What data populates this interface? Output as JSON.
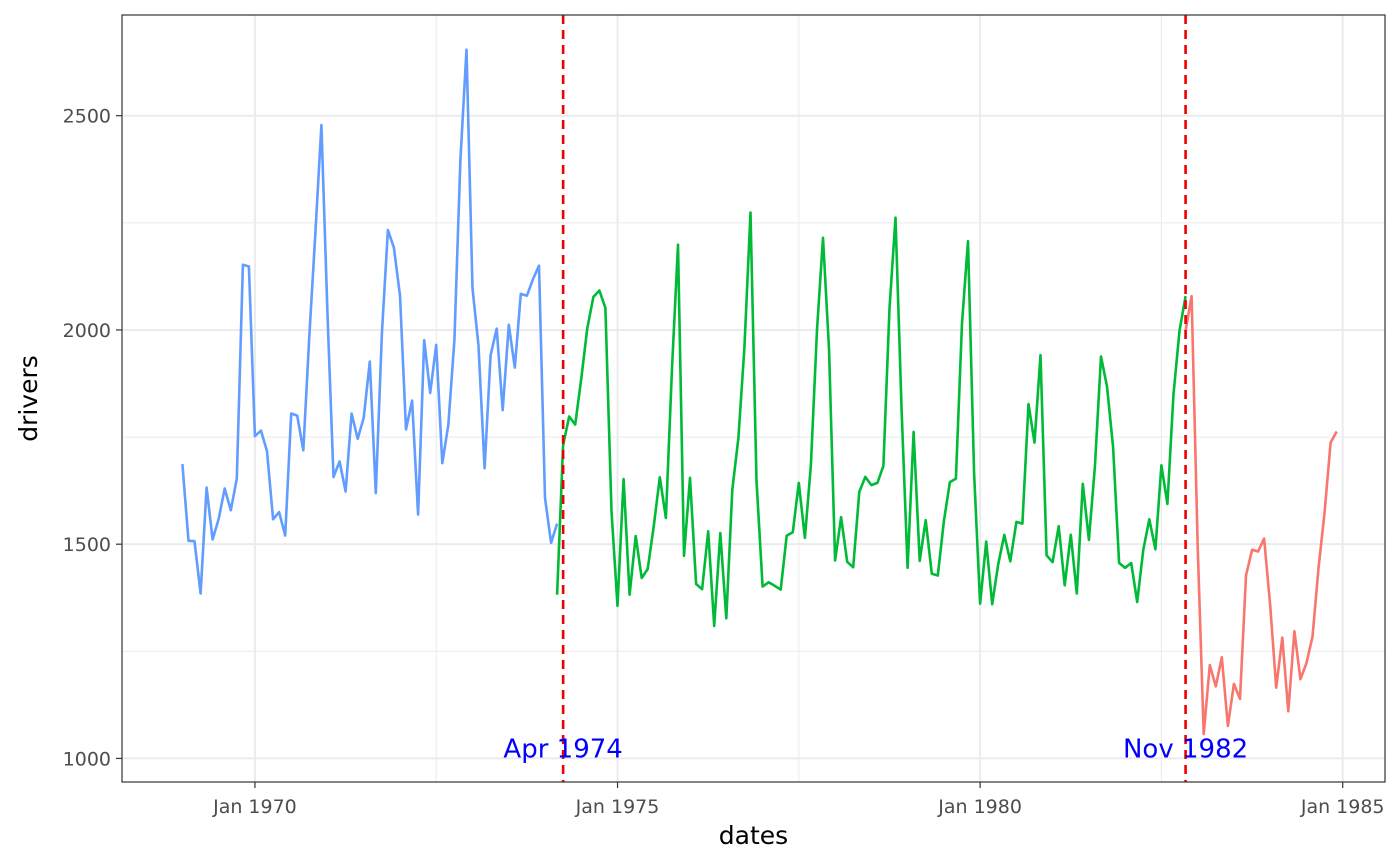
{
  "chart_data": {
    "type": "line",
    "xlabel": "dates",
    "ylabel": "drivers",
    "x_ticks": [
      "Jan 1970",
      "Jan 1975",
      "Jan 1980",
      "Jan 1985"
    ],
    "y_ticks": [
      1000,
      1500,
      2000,
      2500
    ],
    "xlim": [
      "1968-03",
      "1985-08"
    ],
    "ylim": [
      945,
      2735
    ],
    "grid": true,
    "legend": "none",
    "segment_colors": [
      "#619cff",
      "#00ba38",
      "#f8766d"
    ],
    "series": [
      {
        "start": "1969-01",
        "color": "#619cff",
        "values": [
          1687,
          1508,
          1507,
          1385,
          1632,
          1511,
          1559,
          1630,
          1579,
          1653,
          2152,
          2148,
          1752,
          1765,
          1717,
          1558,
          1575,
          1520,
          1805,
          1800,
          1719,
          1985,
          2227,
          2478,
          2036,
          1657,
          1693,
          1623,
          1805,
          1746,
          1795,
          1926,
          1619,
          1992,
          2233,
          2192,
          2080,
          1768,
          1835,
          1569,
          1976,
          1853,
          1965,
          1689,
          1778,
          1976,
          2397,
          2654,
          2097,
          1963,
          1677,
          1941,
          2003,
          1813,
          2012,
          1912,
          2084,
          2080,
          2118,
          2150,
          1608,
          1503,
          1548
        ]
      },
      {
        "start": "1974-03",
        "color": "#00ba38",
        "values": [
          1382,
          1731,
          1798,
          1779,
          1887,
          2004,
          2077,
          2092,
          2051,
          1577,
          1356,
          1652,
          1382,
          1519,
          1421,
          1442,
          1543,
          1656,
          1561,
          1905,
          2199,
          1473,
          1655,
          1407,
          1395,
          1530,
          1309,
          1526,
          1327,
          1627,
          1748,
          1958,
          2274,
          1648,
          1401,
          1411,
          1403,
          1394,
          1520,
          1528,
          1643,
          1515,
          1685,
          2000,
          2215,
          1956,
          1462,
          1563,
          1459,
          1446,
          1622,
          1657,
          1638,
          1643,
          1683,
          2050,
          2262,
          1813,
          1445,
          1762,
          1461,
          1556,
          1431,
          1427,
          1554,
          1645,
          1653,
          2016,
          2207,
          1665,
          1361,
          1506,
          1360,
          1453,
          1522,
          1460,
          1552,
          1548,
          1827,
          1737,
          1941,
          1474,
          1458,
          1542,
          1404,
          1522,
          1385,
          1641,
          1510,
          1681,
          1938,
          1868,
          1726,
          1456,
          1445,
          1456,
          1365,
          1487,
          1558,
          1488,
          1684,
          1594,
          1850,
          1998,
          2079
        ]
      },
      {
        "start": "1982-11",
        "color": "#f8766d",
        "values": [
          1998,
          2079,
          1494,
          1057,
          1218,
          1168,
          1236,
          1076,
          1174,
          1139,
          1427,
          1487,
          1483,
          1513,
          1357,
          1165,
          1282,
          1110,
          1297,
          1185,
          1222,
          1284,
          1444,
          1575,
          1737,
          1763
        ]
      }
    ],
    "annotations": [
      {
        "date": "1974-04",
        "label": "Apr 1974",
        "line_color": "#ee0000",
        "text_color": "#0000ff"
      },
      {
        "date": "1982-11",
        "label": "Nov 1982",
        "line_color": "#ee0000",
        "text_color": "#0000ff"
      }
    ]
  }
}
